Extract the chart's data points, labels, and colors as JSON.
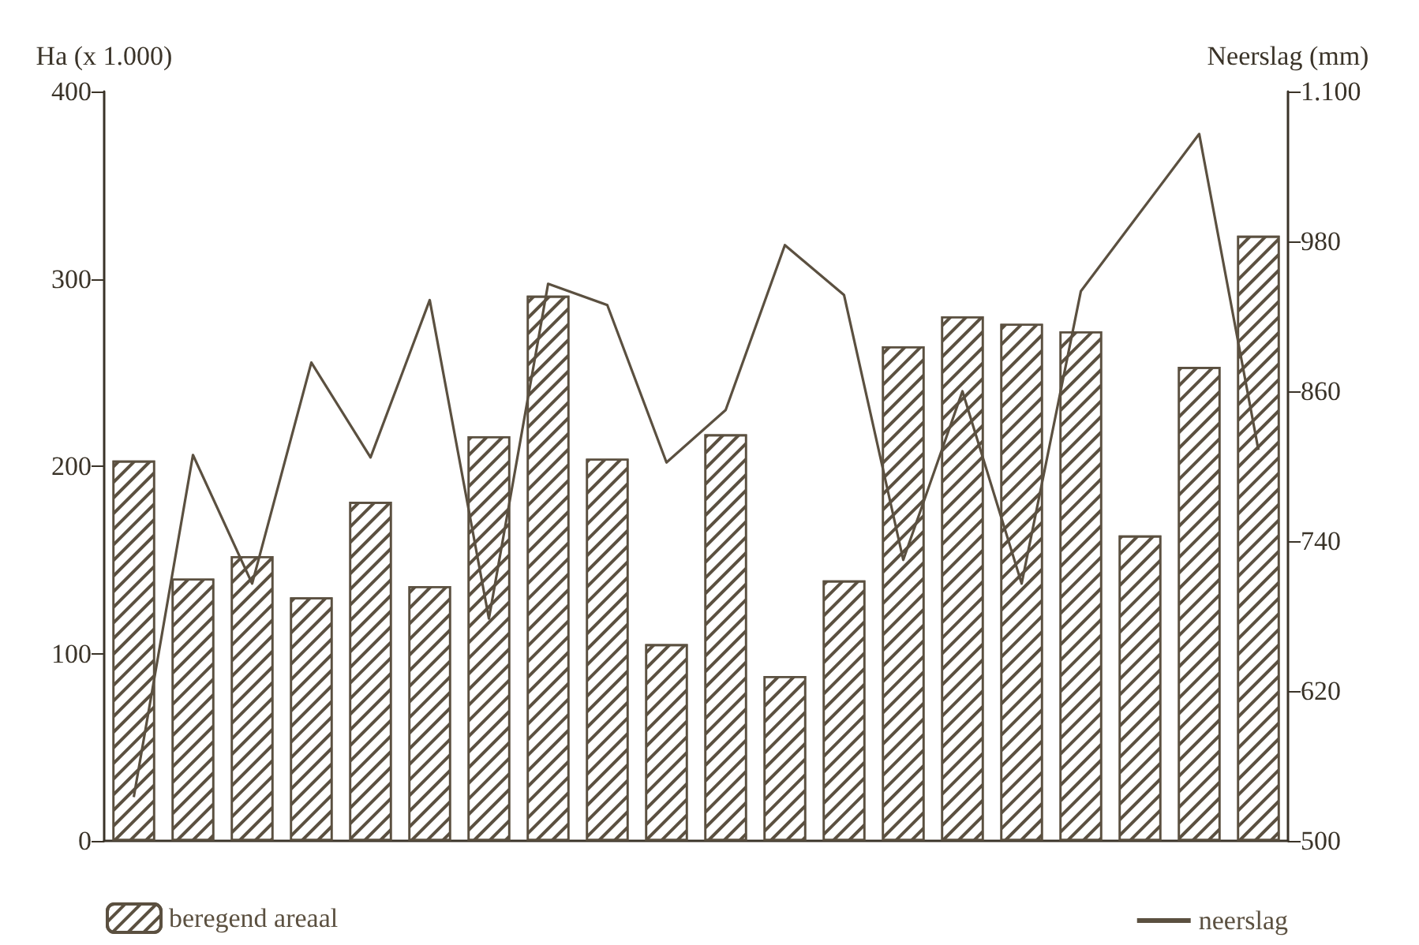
{
  "chart_data": {
    "type": "bar",
    "ylabel": "Ha (x 1.000)",
    "y2label": "Neerslag (mm)",
    "categories": [
      null,
      null,
      null,
      null,
      null,
      null,
      null,
      null,
      null,
      null,
      null,
      null,
      null,
      null,
      null,
      null,
      null,
      null,
      null,
      null
    ],
    "series": [
      {
        "name": "beregend areaal",
        "color": "#5b5040",
        "values": [
          203,
          140,
          152,
          130,
          181,
          136,
          216,
          291,
          204,
          105,
          217,
          88,
          139,
          264,
          280,
          276,
          272,
          163,
          253,
          323
        ]
      },
      {
        "name": "neerslag",
        "type": "line",
        "axis": "y2",
        "color": "#5b5040",
        "values": [
          535,
          809,
          706,
          883,
          807,
          933,
          678,
          946,
          929,
          803,
          845,
          977,
          937,
          725,
          860,
          706,
          940,
          1003,
          1066,
          813
        ]
      }
    ],
    "ylim": [
      0,
      400
    ],
    "yticks": [
      0,
      100,
      200,
      300,
      400
    ],
    "y2lim": [
      500,
      1100
    ],
    "y2ticks": [
      500,
      620,
      740,
      860,
      980,
      {
        "value": 1100,
        "label": "1.100"
      }
    ],
    "grid": false,
    "legend": "bottom",
    "marker": "none",
    "line_style": "solid"
  }
}
